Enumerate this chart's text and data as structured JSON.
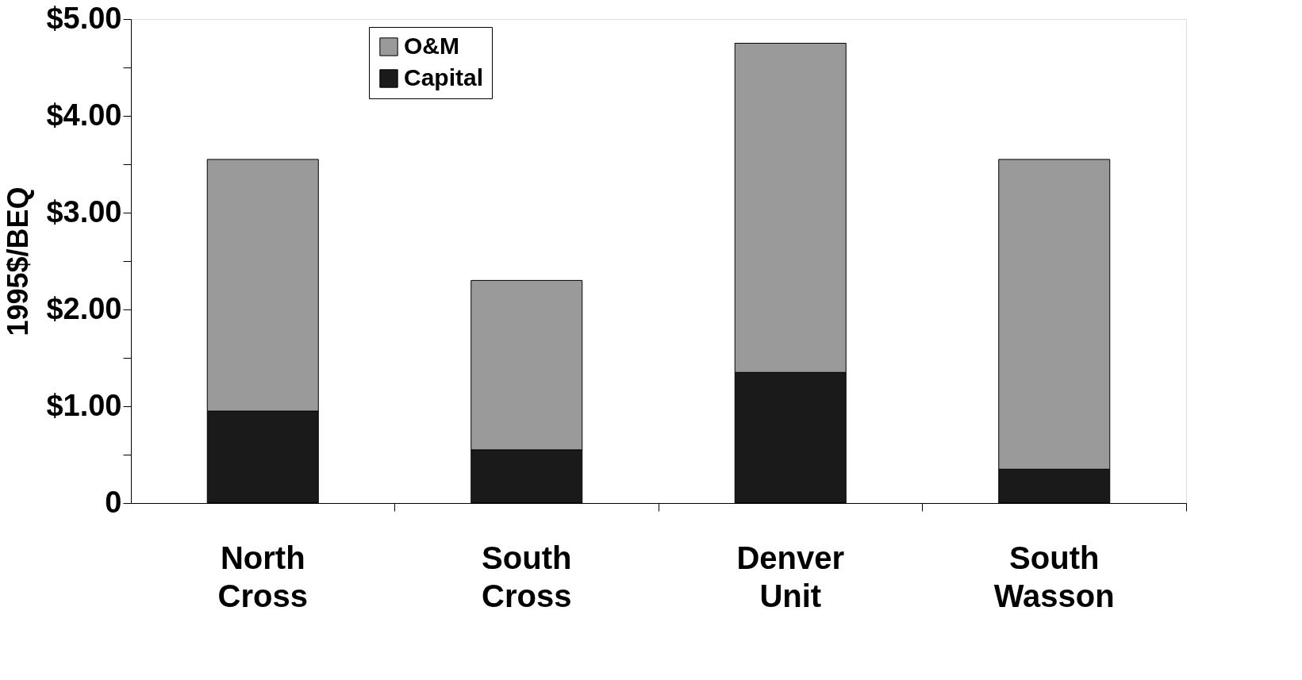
{
  "chart_data": {
    "type": "bar",
    "stacked": true,
    "ylabel": "1995$/BEQ",
    "categories": [
      "North Cross",
      "South Cross",
      "Denver Unit",
      "South Wasson"
    ],
    "series": [
      {
        "name": "Capital",
        "color": "#1a1a1a",
        "values": [
          0.95,
          0.55,
          1.35,
          0.35
        ]
      },
      {
        "name": "O&M",
        "color": "#9a9a9a",
        "values": [
          2.6,
          1.75,
          3.4,
          3.2
        ]
      }
    ],
    "ylim": [
      0,
      5
    ],
    "yticks": [
      {
        "value": 0,
        "label": "0"
      },
      {
        "value": 0.5,
        "label": null
      },
      {
        "value": 1,
        "label": "$1.00"
      },
      {
        "value": 1.5,
        "label": null
      },
      {
        "value": 2,
        "label": "$2.00"
      },
      {
        "value": 2.5,
        "label": null
      },
      {
        "value": 3,
        "label": "$3.00"
      },
      {
        "value": 3.5,
        "label": null
      },
      {
        "value": 4,
        "label": "$4.00"
      },
      {
        "value": 4.5,
        "label": null
      },
      {
        "value": 5,
        "label": "$5.00"
      }
    ],
    "grid": false,
    "legend": "top"
  }
}
